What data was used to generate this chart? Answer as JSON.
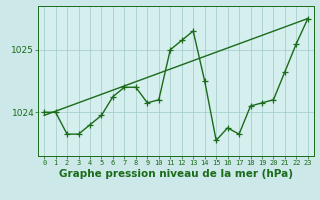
{
  "title": "Graphe pression niveau de la mer (hPa)",
  "bg_color": "#cce8e8",
  "plot_bg_color": "#d5eeee",
  "line_color": "#1a6b1a",
  "xlim": [
    -0.5,
    23.5
  ],
  "ylim": [
    1023.3,
    1025.7
  ],
  "yticks": [
    1024,
    1025
  ],
  "xticks": [
    0,
    1,
    2,
    3,
    4,
    5,
    6,
    7,
    8,
    9,
    10,
    11,
    12,
    13,
    14,
    15,
    16,
    17,
    18,
    19,
    20,
    21,
    22,
    23
  ],
  "hours": [
    0,
    1,
    2,
    3,
    4,
    5,
    6,
    7,
    8,
    9,
    10,
    11,
    12,
    13,
    14,
    15,
    16,
    17,
    18,
    19,
    20,
    21,
    22,
    23
  ],
  "pressure": [
    1024.0,
    1024.0,
    1023.65,
    1023.65,
    1023.8,
    1023.95,
    1024.25,
    1024.4,
    1024.4,
    1024.15,
    1024.2,
    1025.0,
    1025.15,
    1025.3,
    1024.5,
    1023.55,
    1023.75,
    1023.65,
    1024.1,
    1024.15,
    1024.2,
    1024.65,
    1025.1,
    1025.5
  ],
  "trend_x": [
    0,
    23
  ],
  "trend_y": [
    1023.95,
    1025.5
  ],
  "marker_size": 4,
  "linewidth": 1.0,
  "grid_color": "#a0c8c8",
  "tick_fontsize": 5.0,
  "ytick_fontsize": 6.5,
  "xlabel_fontsize": 7.5
}
